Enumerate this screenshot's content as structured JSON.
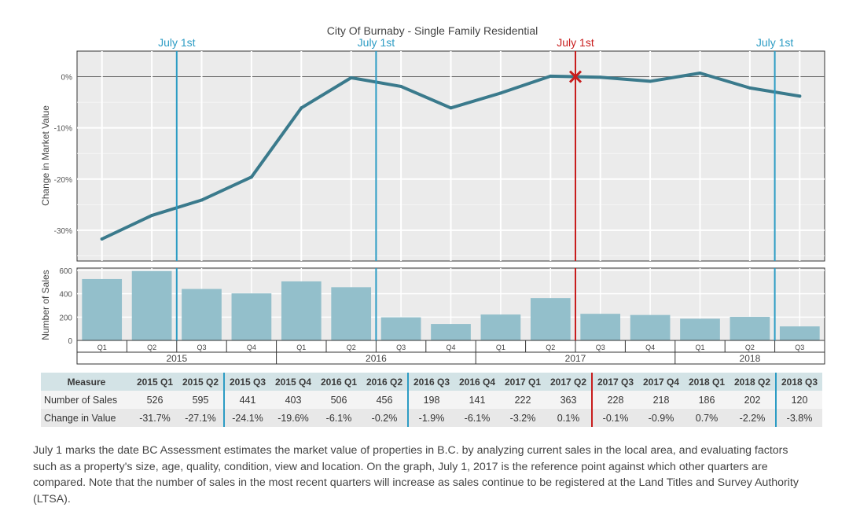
{
  "chart_data": {
    "type": "line",
    "title": "City Of Burnaby - Single Family Residential",
    "quarters": [
      "Q1",
      "Q2",
      "Q3",
      "Q4",
      "Q1",
      "Q2",
      "Q3",
      "Q4",
      "Q1",
      "Q2",
      "Q3",
      "Q4",
      "Q1",
      "Q2",
      "Q3"
    ],
    "years": [
      "2015",
      "2016",
      "2017",
      "2018"
    ],
    "july_labels": [
      "July 1st",
      "July 1st",
      "July 1st",
      "July 1st"
    ],
    "reference_quarter": "2017 Q2",
    "top_panel": {
      "ylabel": "Change in Market Value",
      "yticks": [
        "0%",
        "-10%",
        "-20%",
        "-30%"
      ],
      "ylim": [
        -36,
        5
      ],
      "series": [
        {
          "name": "Change in Value",
          "values": [
            -31.7,
            -27.1,
            -24.1,
            -19.6,
            -6.1,
            -0.2,
            -1.9,
            -6.1,
            -3.2,
            0.1,
            -0.1,
            -0.9,
            0.7,
            -2.2,
            -3.8
          ],
          "color": "#3a7a8c"
        }
      ]
    },
    "bottom_panel": {
      "ylabel": "Number of Sales",
      "yticks": [
        "600",
        "400",
        "200",
        "0"
      ],
      "ylim": [
        0,
        620
      ],
      "series": [
        {
          "name": "Number of Sales",
          "values": [
            526,
            595,
            441,
            403,
            506,
            456,
            198,
            141,
            222,
            363,
            228,
            218,
            186,
            202,
            120
          ],
          "color": "#93bfcb"
        }
      ]
    },
    "colors": {
      "july_line": "#2c9cc4",
      "reference_line": "#c81d1d",
      "panel_bg": "#ebebeb",
      "grid": "#ffffff"
    }
  },
  "table": {
    "headers": [
      "Measure",
      "2015 Q1",
      "2015 Q2",
      "2015 Q3",
      "2015 Q4",
      "2016 Q1",
      "2016 Q2",
      "2016 Q3",
      "2016 Q4",
      "2017 Q1",
      "2017 Q2",
      "2017 Q3",
      "2017 Q4",
      "2018 Q1",
      "2018 Q2",
      "2018 Q3"
    ],
    "rows": [
      {
        "label": "Number of Sales",
        "values": [
          "526",
          "595",
          "441",
          "403",
          "506",
          "456",
          "198",
          "141",
          "222",
          "363",
          "228",
          "218",
          "186",
          "202",
          "120"
        ]
      },
      {
        "label": "Change in Value",
        "values": [
          "-31.7%",
          "-27.1%",
          "-24.1%",
          "-19.6%",
          "-6.1%",
          "-0.2%",
          "-1.9%",
          "-6.1%",
          "-3.2%",
          "0.1%",
          "-0.1%",
          "-0.9%",
          "0.7%",
          "-2.2%",
          "-3.8%"
        ]
      }
    ]
  },
  "note": "July 1 marks the date BC Assessment estimates the market value of properties in B.C. by analyzing current sales in the local area, and evaluating factors such as a property's size, age, quality, condition, view and location. On the graph, July 1, 2017 is the reference point against which other quarters are compared. Note that the number of sales in the most recent quarters will increase as sales continue to be registered at the Land Titles and Survey Authority (LTSA)."
}
